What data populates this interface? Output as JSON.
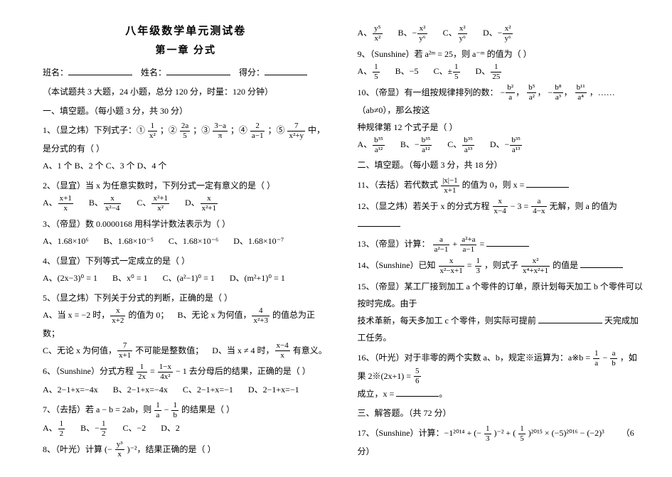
{
  "header": {
    "title1": "八年级数学单元测试卷",
    "title2": "第一章  分式",
    "class_label": "班名：",
    "name_label": "姓名：",
    "score_label": "得分：",
    "meta": "（本试题共 3 大题，24 小题，总分 120 分，时量：120 分钟）"
  },
  "sec1": "一、填空题。（每小题 3 分，共 30 分）",
  "q1": {
    "stem_a": "1、（显之炜）下列式子：①",
    "stem_b": "；②",
    "stem_c": "；③",
    "stem_d": "；④",
    "stem_e": "；⑤",
    "stem_f": "中，是分式的有（    ）",
    "f1n": "1",
    "f1d": "x²",
    "f2n": "2a",
    "f2d": "5",
    "f3n": "3−a",
    "f3d": "π",
    "f4n": "2",
    "f4d": "a−1",
    "f5n": "7",
    "f5d": "x²+y",
    "opts": "A、1 个    B、2 个    C、3 个    D、4 个"
  },
  "q2": {
    "stem": "2、（显宜）当 x 为任意实数时，下列分式一定有意义的是（    ）",
    "an": "x+1",
    "ad": "x",
    "bn": "x",
    "bd": "x²−4",
    "cn": "x²+1",
    "cd": "x²",
    "dn": "x",
    "dd": "x²+1"
  },
  "q3": {
    "stem": "3、（帝显）数 0.0000168 用科学计数法表示为（    ）",
    "a": "A、1.68×10⁶",
    "b": "B、1.68×10⁻⁵",
    "c": "C、1.68×10⁻⁶",
    "d": "D、1.68×10⁻⁷"
  },
  "q4": {
    "stem": "4、（显宜）下列等式一定成立的是（    ）",
    "a": "A、(2x−3)⁰ = 1",
    "b": "B、x⁰ = 1",
    "c": "C、(a²−1)⁰ = 1",
    "d": "D、(m²+1)⁰ = 1"
  },
  "q5": {
    "stem": "5、（显之炜）下列关于分式的判断，正确的是（    ）",
    "a_pre": "A、当 x = −2 时，",
    "a_n": "x",
    "a_d": "x+2",
    "a_post": " 的值为 0；",
    "b_pre": "B、无论 x 为何值，",
    "b_n": "4",
    "b_d": "x²+3",
    "b_post": " 的值总为正数；",
    "c_pre": "C、无论 x 为何值，",
    "c_n": "7",
    "c_d": "x+1",
    "c_post": " 不可能是整数值；",
    "d_pre": "D、当 x ≠ 4 时，",
    "d_n": "x−4",
    "d_d": "x",
    "d_post": " 有意义。"
  },
  "q6": {
    "stem_a": "6、（Sunshine）分式方程 ",
    "f1n": "1",
    "f1d": "2x",
    "mid": " = ",
    "f2n": "1−x",
    "f2d": "4x²",
    "stem_b": " − 1 去分母后的结果，正确的是（    ）",
    "a": "A、2−1+x=−4x",
    "b": "B、2−1+x=−4x",
    "c": "C、2−1+x=−1",
    "d": "D、2−1+x=−1"
  },
  "q7": {
    "stem_a": "7、（去括）若 a − b = 2ab，则 ",
    "f1n": "1",
    "f1d": "a",
    "mid": " − ",
    "f2n": "1",
    "f2d": "b",
    "stem_b": " 的结果是（    ）",
    "a_n": "1",
    "a_d": "2",
    "b_n": "1",
    "b_d": "2",
    "c": "C、−2",
    "d": "D、2"
  },
  "q8": {
    "stem_a": "8、（叶光）计算 (−",
    "fn": "y³",
    "fd": "x",
    "stem_b": ")⁻²，结果正确的是（    ）",
    "a_n": "y⁵",
    "a_d": "x²",
    "b_n": "x²",
    "b_d": "y⁶",
    "c_n": "x²",
    "c_d": "y⁶",
    "d_n": "x²",
    "d_d": "y⁶",
    "a_lbl": "A、",
    "b_lbl": "B、−",
    "c_lbl": "C、",
    "d_lbl": "D、−"
  },
  "q9": {
    "stem": "9、（Sunshine）若 a²ᵐ = 25，则 a⁻ᵐ 的值为（    ）",
    "a_n": "1",
    "a_d": "5",
    "b": "B、−5",
    "c_pre": "C、±",
    "c_n": "1",
    "c_d": "5",
    "d_n": "1",
    "d_d": "25"
  },
  "q10": {
    "stem_a": "10、（帝显）有一组按规律排列的数：",
    "f1n": "b²",
    "f1d": "a",
    "f2n": "b⁵",
    "f2d": "a²",
    "f3n": "b⁸",
    "f3d": "a³",
    "f4n": "b¹¹",
    "f4d": "a⁴",
    "stem_b": "，……（ab≠0），那么按这",
    "line2": "种规律第 12 个式子是（        ）",
    "a_n": "b³⁵",
    "a_d": "a¹²",
    "b_pre": "B、−",
    "b_n": "b³⁵",
    "b_d": "a¹²",
    "c_n": "b³⁵",
    "c_d": "a¹³",
    "d_pre": "D、−",
    "d_n": "b³⁵",
    "d_d": "a¹³"
  },
  "sec2": "二、填空题。（每小题 3 分，共 18 分）",
  "q11": {
    "stem_a": "11、（去括）若代数式 ",
    "fn": "|x|−1",
    "fd": "x+1",
    "stem_b": " 的值为 0，则 x = "
  },
  "q12": {
    "stem_a": "12、（显之炜）若关于 x 的分式方程 ",
    "f1n": "x",
    "f1d": "x−4",
    "mid": " − 3 = ",
    "f2n": "a",
    "f2d": "4−x",
    "stem_b": " 无解，则 a 的值为 "
  },
  "q13": {
    "stem_a": "13、（帝显）计算：",
    "f1n": "a",
    "f1d": "a²−1",
    "mid": " + ",
    "f2n": "a²+a",
    "f2d": "a−1",
    "stem_b": " = "
  },
  "q14": {
    "stem_a": "14、（Sunshine）已知 ",
    "f1n": "x",
    "f1d": "x²−x+1",
    "mid": " = ",
    "f2n": "1",
    "f2d": "3",
    "stem_b": "，则式子 ",
    "f3n": "x²",
    "f3d": "x⁴+x²+1",
    "stem_c": " 的值是 "
  },
  "q15": {
    "line1": "15、（帝显）某工厂接到加工 a 个零件的订单，原计划每天加工 b 个零件可以按时完成。由于",
    "line2": "技术革新，每天多加工 c 个零件，则实际可提前 ",
    "line2b": " 天完成加工任务。"
  },
  "q16": {
    "stem_a": "16、（叶光）对于非零的两个实数 a、b，规定※运算为：a※b = ",
    "f1n": "1",
    "f1d": "a",
    "mid": " − ",
    "f2n": "a",
    "f2d": "b",
    "stem_b": "，如果 2※(2x+1) = ",
    "f3n": "5",
    "f3d": "6",
    "line2": "成立，x = "
  },
  "sec3": "三、解答题。（共 72 分）",
  "q17": {
    "stem_a": "17、（Sunshine）计算：−1²⁰¹⁴ + (−",
    "f1n": "1",
    "f1d": "3",
    "mid1": ")⁻² + (",
    "f2n": "1",
    "f2d": "5",
    "mid2": ")²⁰¹⁵ × (−5)²⁰¹⁶ − (−2)³",
    "score": "（6 分）"
  }
}
